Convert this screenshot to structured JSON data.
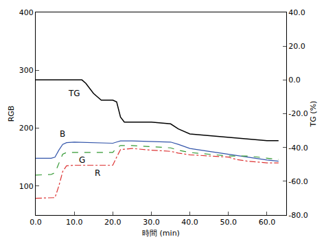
{
  "chart_data": {
    "type": "line",
    "x_label": "時間 (min)",
    "y_label": "RGB",
    "y2_label": "TG (%)",
    "xlim": [
      0,
      65
    ],
    "xticks": [
      {
        "value": 0,
        "label": "0.0"
      },
      {
        "value": 10,
        "label": "10.0"
      },
      {
        "value": 20,
        "label": "20.0"
      },
      {
        "value": 30,
        "label": "30.0"
      },
      {
        "value": 40,
        "label": "40.0"
      },
      {
        "value": 50,
        "label": "50.0"
      },
      {
        "value": 60,
        "label": "60.0"
      }
    ],
    "ylim": [
      50,
      400
    ],
    "yticks": [
      100,
      200,
      300,
      400
    ],
    "y2lim": [
      -80,
      40
    ],
    "y2ticks": [
      {
        "value": -80,
        "label": "-80.0"
      },
      {
        "value": -60,
        "label": "-60.0"
      },
      {
        "value": -40,
        "label": "-40.0"
      },
      {
        "value": -20,
        "label": "-20.0"
      },
      {
        "value": 0,
        "label": "0.0"
      },
      {
        "value": 20,
        "label": "20.0"
      },
      {
        "value": 40,
        "label": "40.0"
      }
    ],
    "grid": false,
    "series": [
      {
        "name": "B",
        "color": "#3355aa",
        "line_style": "solid",
        "x": [
          0,
          4,
          5,
          6,
          7,
          8,
          10,
          15,
          20,
          21,
          22,
          25,
          30,
          35,
          37,
          40,
          45,
          50,
          55,
          60,
          63
        ],
        "values": [
          148,
          148,
          150,
          162,
          172,
          175,
          176,
          175,
          174,
          176,
          178,
          178,
          177,
          176,
          172,
          165,
          160,
          155,
          150,
          145,
          143
        ]
      },
      {
        "name": "G",
        "color": "#339933",
        "line_style": "dash",
        "x": [
          0,
          4,
          5,
          6,
          7,
          8,
          10,
          15,
          20,
          21,
          22,
          25,
          30,
          35,
          37,
          40,
          45,
          50,
          55,
          60,
          63
        ],
        "values": [
          119,
          120,
          123,
          140,
          155,
          158,
          158,
          158,
          158,
          166,
          170,
          170,
          168,
          166,
          162,
          158,
          155,
          152,
          152,
          148,
          146
        ]
      },
      {
        "name": "R",
        "color": "#dd3333",
        "line_style": "dashdot",
        "x": [
          0,
          5,
          6,
          7,
          8,
          10,
          15,
          20,
          21,
          22,
          25,
          30,
          35,
          37,
          40,
          45,
          50,
          52,
          55,
          60,
          63
        ],
        "values": [
          79,
          80,
          100,
          125,
          135,
          136,
          136,
          136,
          150,
          163,
          165,
          162,
          160,
          157,
          154,
          152,
          150,
          146,
          143,
          140,
          140
        ]
      },
      {
        "name": "TG",
        "color": "#000000",
        "line_style": "solid",
        "axis": "y2",
        "x": [
          0,
          12,
          13,
          15,
          17,
          20,
          21,
          22,
          23,
          30,
          35,
          37,
          40,
          45,
          50,
          55,
          60,
          63
        ],
        "values": [
          0,
          0,
          -2,
          -8,
          -12,
          -12,
          -13,
          -22,
          -25,
          -25,
          -26,
          -29,
          -32,
          -33,
          -34,
          -35,
          -36,
          -36
        ]
      }
    ],
    "annotations": [
      {
        "text": "TG",
        "x": 10,
        "y": -8,
        "axis": "y2"
      },
      {
        "text": "B",
        "x": 7,
        "y": 190
      },
      {
        "text": "G",
        "x": 12,
        "y": 145
      },
      {
        "text": "R",
        "x": 16,
        "y": 122
      }
    ]
  }
}
